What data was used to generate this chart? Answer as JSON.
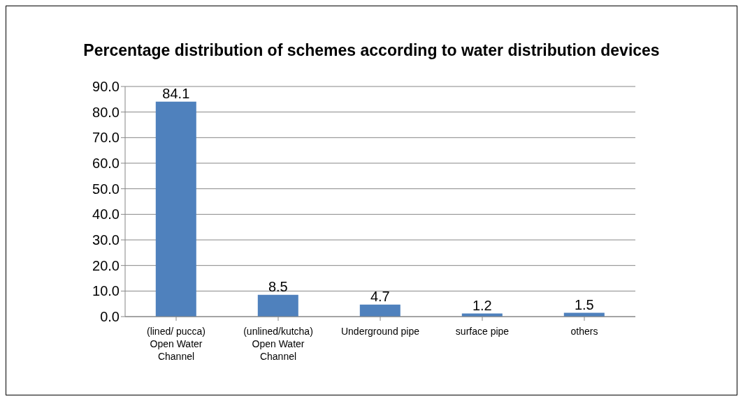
{
  "chart_data": {
    "type": "bar",
    "title": "Percentage distribution of schemes according to water distribution devices",
    "categories": [
      "(lined/ pucca) Open Water Channel",
      "(unlined/kutcha) Open Water Channel",
      "Underground pipe",
      "surface pipe",
      "others"
    ],
    "values": [
      84.1,
      8.5,
      4.7,
      1.2,
      1.5
    ],
    "color": "#4f81bd",
    "ylim": [
      0,
      90
    ],
    "yticks": [
      {
        "value": 0,
        "label": "0.0"
      },
      {
        "value": 10,
        "label": "10.0"
      },
      {
        "value": 20,
        "label": "20.0"
      },
      {
        "value": 30,
        "label": "30.0"
      },
      {
        "value": 40,
        "label": "40.0"
      },
      {
        "value": 50,
        "label": "50.0"
      },
      {
        "value": 60,
        "label": "60.0"
      },
      {
        "value": 70,
        "label": "70.0"
      },
      {
        "value": 80,
        "label": "80.0"
      },
      {
        "value": 90,
        "label": "90.0"
      }
    ],
    "grid": "y",
    "data_labels": true
  }
}
